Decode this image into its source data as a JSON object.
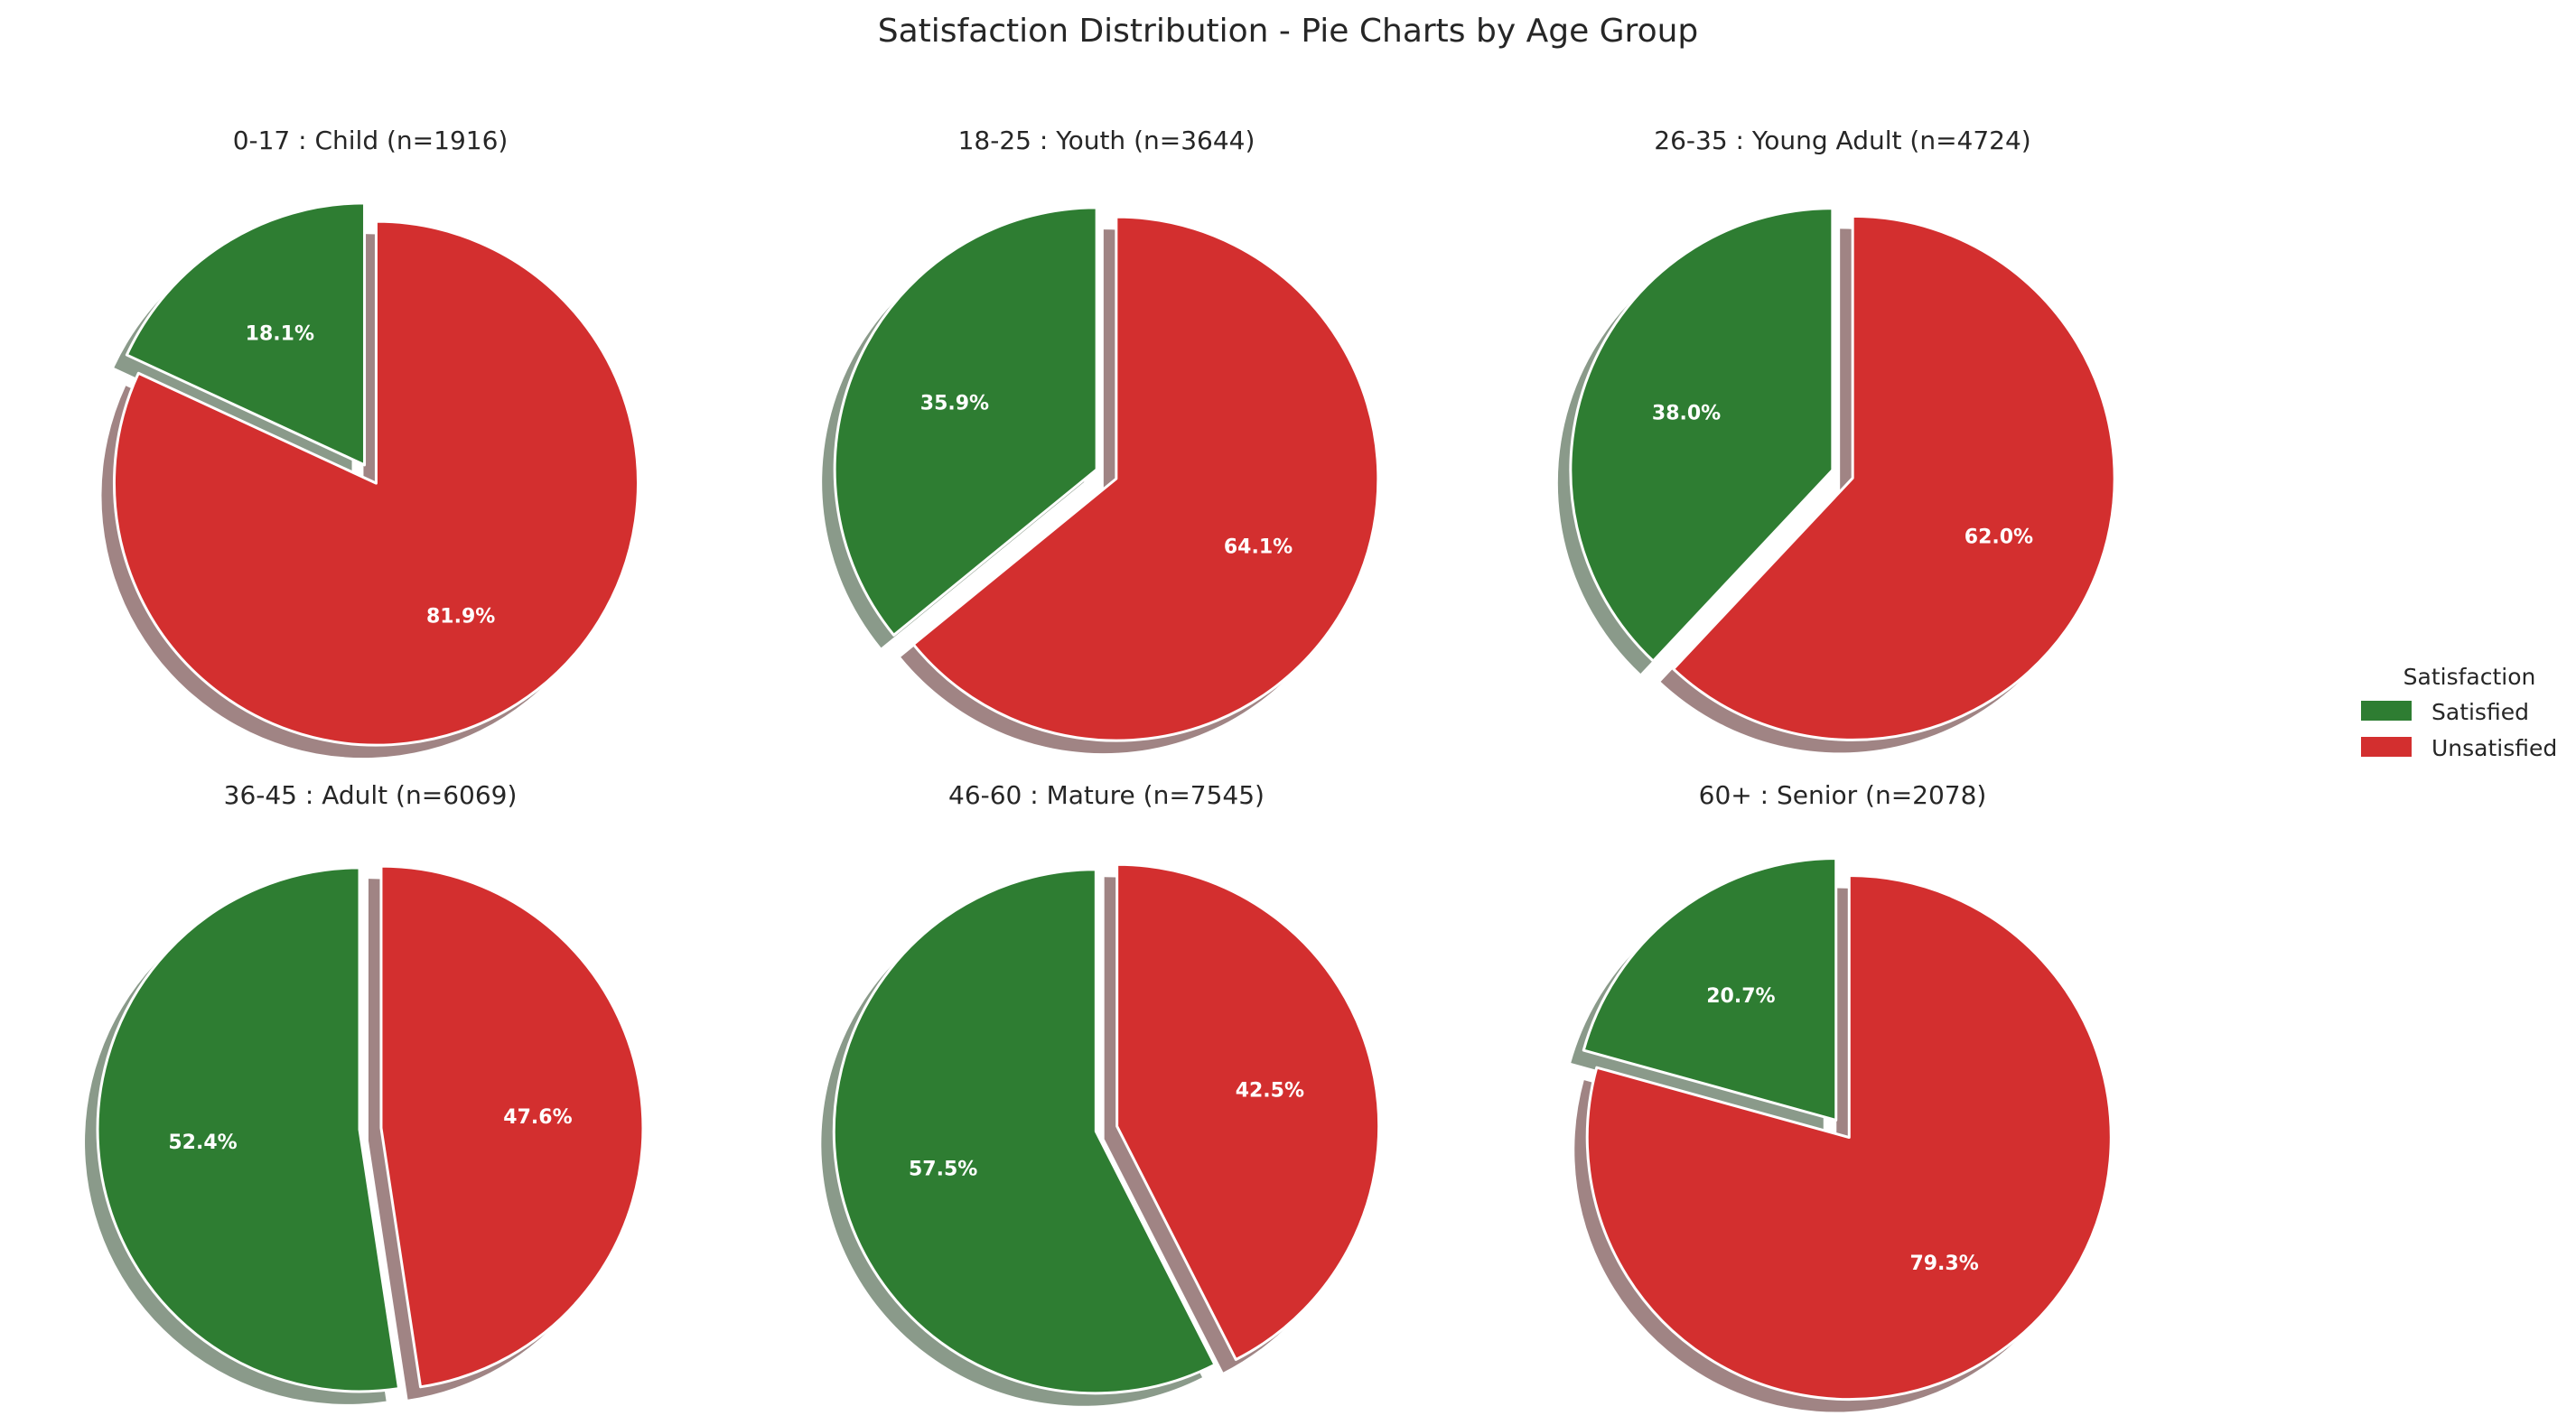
{
  "chart_data": {
    "type": "pie",
    "title": "Satisfaction Distribution - Pie Charts by Age Group",
    "legend": {
      "title": "Satisfaction",
      "placement": "right",
      "entries": [
        "Satisfied",
        "Unsatisfied"
      ]
    },
    "colors": {
      "Satisfied": "#2e7d32",
      "Unsatisfied": "#d32f2f"
    },
    "shadow": true,
    "exploded": true,
    "pies": [
      {
        "title": "0-17 : Child (n=1916)",
        "labels": [
          "Satisfied",
          "Unsatisfied"
        ],
        "values": [
          18.1,
          81.9
        ],
        "value_labels": [
          "18.1%",
          "81.9%"
        ]
      },
      {
        "title": "18-25 : Youth (n=3644)",
        "labels": [
          "Satisfied",
          "Unsatisfied"
        ],
        "values": [
          35.9,
          64.1
        ],
        "value_labels": [
          "35.9%",
          "64.1%"
        ]
      },
      {
        "title": "26-35 : Young Adult (n=4724)",
        "labels": [
          "Satisfied",
          "Unsatisfied"
        ],
        "values": [
          38.0,
          62.0
        ],
        "value_labels": [
          "38.0%",
          "62.0%"
        ]
      },
      {
        "title": "36-45 : Adult (n=6069)",
        "labels": [
          "Satisfied",
          "Unsatisfied"
        ],
        "values": [
          52.4,
          47.6
        ],
        "value_labels": [
          "52.4%",
          "47.6%"
        ]
      },
      {
        "title": "46-60 : Mature (n=7545)",
        "labels": [
          "Satisfied",
          "Unsatisfied"
        ],
        "values": [
          57.5,
          42.5
        ],
        "value_labels": [
          "57.5%",
          "42.5%"
        ]
      },
      {
        "title": "60+ : Senior (n=2078)",
        "labels": [
          "Satisfied",
          "Unsatisfied"
        ],
        "values": [
          20.7,
          79.3
        ],
        "value_labels": [
          "20.7%",
          "79.3%"
        ]
      }
    ]
  }
}
